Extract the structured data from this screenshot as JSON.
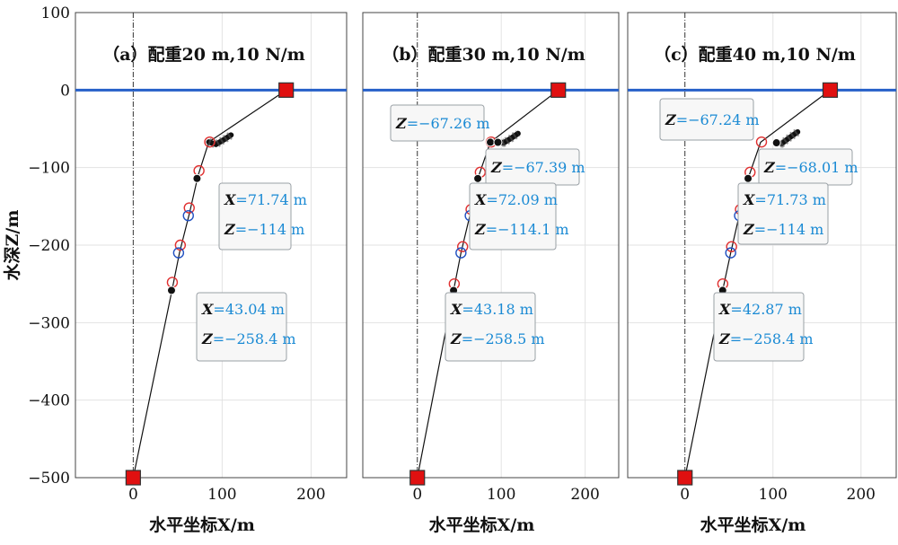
{
  "chart_data": [
    {
      "type": "line",
      "title": "（a）配重20 m,10 N/m",
      "xlabel": "水平坐标X/m",
      "ylabel": "水深Z/m",
      "xlim": [
        -65,
        240
      ],
      "ylim": [
        -500,
        100
      ],
      "xticks": [
        0,
        100,
        200
      ],
      "yticks": [
        100,
        0,
        -100,
        -200,
        -300,
        -400,
        -500
      ],
      "grid": true,
      "water_surface_z": 0,
      "colors": {
        "mooring": "#000000",
        "sea_surface": "#2660c8",
        "anchor": "#e01010",
        "marker_red": "#e03030",
        "marker_blue": "#2050c0",
        "annotation_value": "#1a8ad4"
      },
      "series": [
        {
          "points": [
            [
              0,
              -500
            ],
            [
              44,
              -256
            ],
            [
              52,
              -210
            ],
            [
              63,
              -160
            ],
            [
              73,
              -110
            ],
            [
              85,
              -67
            ],
            [
              172,
              0
            ]
          ]
        }
      ],
      "clump_weight_segment": [
        [
          85,
          -67
        ],
        [
          93,
          -70
        ],
        [
          102,
          -64
        ],
        [
          110,
          -58
        ]
      ],
      "anchor_points": [
        [
          0,
          -500
        ],
        [
          172,
          0
        ]
      ],
      "red_circles": [
        [
          44,
          -248
        ],
        [
          53,
          -200
        ],
        [
          63,
          -152
        ],
        [
          74,
          -104
        ],
        [
          86,
          -67
        ]
      ],
      "blue_circles": [
        [
          51,
          -210
        ],
        [
          62,
          -162
        ]
      ],
      "black_points": [
        [
          43.04,
          -258.4
        ],
        [
          71.74,
          -114
        ]
      ],
      "annotations": [
        {
          "lines": [
            {
              "var": "X",
              "value": "=71.74 m"
            },
            {
              "var": "Z",
              "value": "=−114 m"
            }
          ]
        },
        {
          "lines": [
            {
              "var": "X",
              "value": "=43.04 m"
            },
            {
              "var": "Z",
              "value": "=−258.4 m"
            }
          ]
        }
      ]
    },
    {
      "type": "line",
      "title": "（b）配重30 m,10 N/m",
      "xlabel": "水平坐标X/m",
      "ylabel": "",
      "xlim": [
        -65,
        240
      ],
      "ylim": [
        -500,
        100
      ],
      "xticks": [
        0,
        100,
        200
      ],
      "yticks": [],
      "grid": true,
      "water_surface_z": 0,
      "series": [
        {
          "points": [
            [
              0,
              -500
            ],
            [
              43.18,
              -258.5
            ],
            [
              52,
              -210
            ],
            [
              63,
              -160
            ],
            [
              72.09,
              -114.1
            ],
            [
              87,
              -67.26
            ],
            [
              168,
              0
            ]
          ]
        }
      ],
      "clump_weight_segment": [
        [
          96,
          -67.39
        ],
        [
          103,
          -68
        ],
        [
          112,
          -62
        ],
        [
          120,
          -56
        ]
      ],
      "anchor_points": [
        [
          0,
          -500
        ],
        [
          168,
          0
        ]
      ],
      "red_circles": [
        [
          44,
          -250
        ],
        [
          54,
          -202
        ],
        [
          64,
          -154
        ],
        [
          75,
          -106
        ],
        [
          88,
          -67
        ]
      ],
      "blue_circles": [
        [
          52,
          -210
        ],
        [
          63,
          -162
        ]
      ],
      "black_points": [
        [
          43.18,
          -258.5
        ],
        [
          72.09,
          -114.1
        ],
        [
          87,
          -67.26
        ],
        [
          96,
          -67.39
        ]
      ],
      "annotations": [
        {
          "lines": [
            {
              "var": "Z",
              "value": "=−67.26 m"
            }
          ]
        },
        {
          "lines": [
            {
              "var": "Z",
              "value": "=−67.39 m"
            }
          ]
        },
        {
          "lines": [
            {
              "var": "X",
              "value": "=72.09 m"
            },
            {
              "var": "Z",
              "value": "=−114.1 m"
            }
          ]
        },
        {
          "lines": [
            {
              "var": "X",
              "value": "=43.18 m"
            },
            {
              "var": "Z",
              "value": "=−258.5 m"
            }
          ]
        }
      ]
    },
    {
      "type": "line",
      "title": "（c）配重40 m,10 N/m",
      "xlabel": "水平坐标X/m",
      "ylabel": "",
      "xlim": [
        -65,
        240
      ],
      "ylim": [
        -500,
        100
      ],
      "xticks": [
        0,
        100,
        200
      ],
      "yticks": [],
      "grid": true,
      "water_surface_z": 0,
      "series": [
        {
          "points": [
            [
              0,
              -500
            ],
            [
              42.87,
              -258.4
            ],
            [
              52,
              -210
            ],
            [
              62,
              -160
            ],
            [
              71.73,
              -114
            ],
            [
              86,
              -67.24
            ],
            [
              165,
              0
            ]
          ]
        }
      ],
      "clump_weight_segment": [
        [
          104,
          -68.01
        ],
        [
          110,
          -69
        ],
        [
          118,
          -62
        ],
        [
          128,
          -54
        ]
      ],
      "anchor_points": [
        [
          0,
          -500
        ],
        [
          165,
          0
        ]
      ],
      "red_circles": [
        [
          43,
          -250
        ],
        [
          53,
          -202
        ],
        [
          63,
          -154
        ],
        [
          74,
          -106
        ],
        [
          87,
          -67
        ]
      ],
      "blue_circles": [
        [
          52,
          -210
        ],
        [
          62,
          -162
        ]
      ],
      "black_points": [
        [
          42.87,
          -258.4
        ],
        [
          71.73,
          -114
        ],
        [
          104,
          -68.01
        ]
      ],
      "annotations": [
        {
          "lines": [
            {
              "var": "Z",
              "value": "=−67.24 m"
            }
          ]
        },
        {
          "lines": [
            {
              "var": "Z",
              "value": "=−68.01 m"
            }
          ]
        },
        {
          "lines": [
            {
              "var": "X",
              "value": "=71.73 m"
            },
            {
              "var": "Z",
              "value": "=−114 m"
            }
          ]
        },
        {
          "lines": [
            {
              "var": "X",
              "value": "=42.87 m"
            },
            {
              "var": "Z",
              "value": "=−258.4 m"
            }
          ]
        }
      ]
    }
  ]
}
